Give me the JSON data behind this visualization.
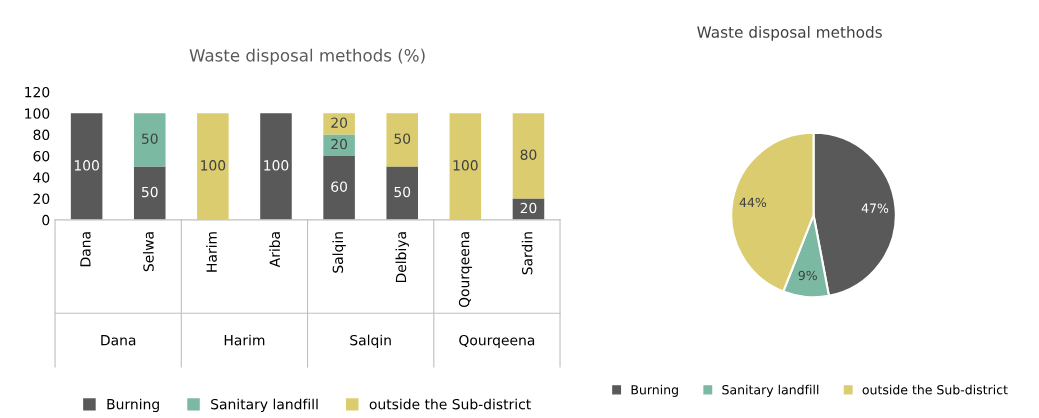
{
  "chart_data": [
    {
      "type": "bar",
      "stacked": true,
      "title": "Waste disposal methods (%)",
      "categories": [
        "Dana",
        "Selwa",
        "Harim",
        "Ariba",
        "Salqin",
        "Delbiya",
        "Qourqeena",
        "Sardin"
      ],
      "annotations": [
        "Dana",
        "Harim",
        "Salqin",
        "Qourqeena"
      ],
      "ylim": [
        0,
        120
      ],
      "yticks": [
        0,
        20,
        40,
        60,
        80,
        100,
        120
      ],
      "grid": false,
      "legend": "bottom",
      "series": [
        {
          "name": "Burning",
          "color": "#595959",
          "values": [
            100,
            50,
            0,
            100,
            60,
            50,
            0,
            20
          ],
          "value_labels": [
            "100",
            "50",
            null,
            "100",
            "60",
            "50",
            null,
            "20"
          ]
        },
        {
          "name": "Sanitary landfill",
          "color": "#7cb9a3",
          "values": [
            0,
            50,
            0,
            0,
            20,
            0,
            0,
            0
          ],
          "value_labels": [
            null,
            "50",
            null,
            null,
            "20",
            null,
            null,
            null
          ]
        },
        {
          "name": "outside the Sub-district",
          "color": "#dbcd6f",
          "values": [
            0,
            0,
            100,
            0,
            20,
            50,
            100,
            80
          ],
          "value_labels": [
            null,
            null,
            "100",
            null,
            "20",
            "50",
            "100",
            "80"
          ]
        }
      ]
    },
    {
      "type": "pie",
      "title": "Waste disposal methods",
      "categories": [
        "Burning",
        "Sanitary landfill",
        "outside the Sub-district"
      ],
      "values": [
        47,
        9,
        44
      ],
      "value_labels": [
        "47%",
        "9%",
        "44%"
      ],
      "colors": [
        "#595959",
        "#7cb9a3",
        "#dbcd6f"
      ],
      "legend": "bottom"
    }
  ]
}
